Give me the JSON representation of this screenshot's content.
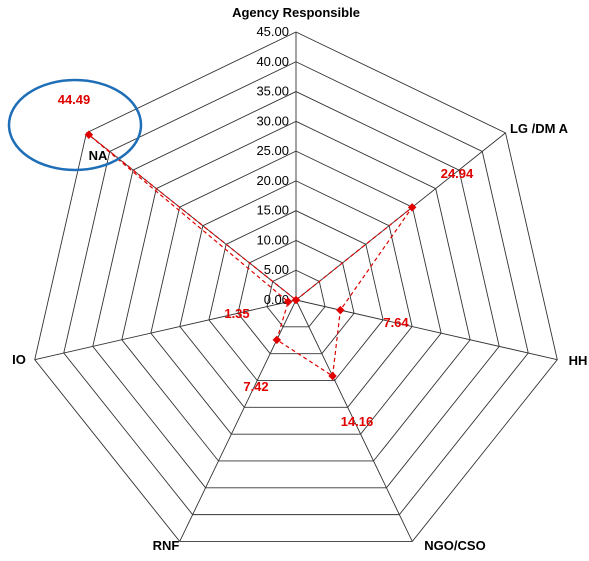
{
  "chart_data": {
    "type": "radar",
    "title": "Agency Responsible",
    "categories": [
      "Agency Responsible",
      "LG /DM A",
      "HH",
      "NGO/CSO",
      "RNF",
      "IO",
      "NA"
    ],
    "series": [
      {
        "values": [
          0.0,
          24.94,
          7.64,
          14.16,
          7.42,
          1.35,
          44.49
        ]
      }
    ],
    "value_labels": [
      "",
      "24.94",
      "7.64",
      "14.16",
      "7.42",
      "1.35",
      "44.49"
    ],
    "r_range": [
      0,
      45
    ],
    "r_ticks": [
      "0.00",
      "5.00",
      "10.00",
      "15.00",
      "20.00",
      "25.00",
      "30.00",
      "35.00",
      "40.00",
      "45.00"
    ],
    "grid": true,
    "series_color": "#e00000",
    "highlight": {
      "category": "NA",
      "color": "#1f6fb8"
    }
  }
}
